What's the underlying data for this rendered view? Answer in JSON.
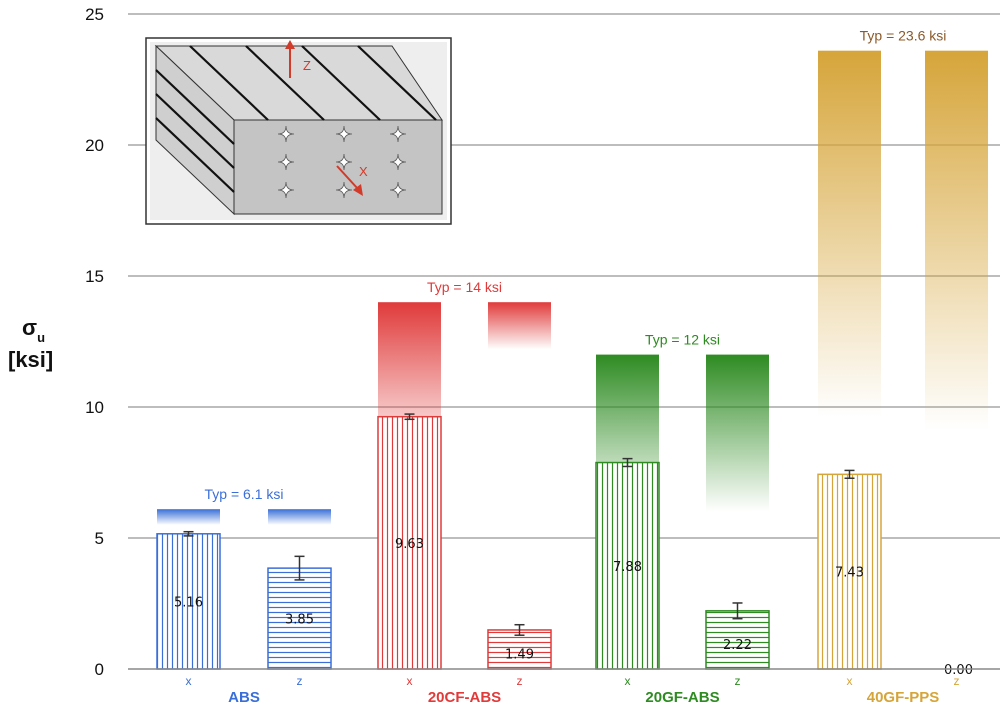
{
  "chart_data": {
    "type": "bar",
    "ylabel_symbol": "σ",
    "ylabel_sub": "u",
    "ylabel_unit": "[ksi]",
    "ylim": [
      0,
      25
    ],
    "yticks": [
      "0",
      "5",
      "10",
      "15",
      "20",
      "25"
    ],
    "grid": true,
    "groups": [
      {
        "name": "ABS",
        "color": "#3a6fd8",
        "typical": 6.1,
        "typical_label": "Typ = 6.1 ksi",
        "bars": [
          {
            "dir": "x",
            "value": 5.16,
            "label": "5.16",
            "err": 0.08,
            "hatch": "vertical"
          },
          {
            "dir": "z",
            "value": 3.85,
            "label": "3.85",
            "err": 0.45,
            "hatch": "horizontal"
          }
        ]
      },
      {
        "name": "20CF-ABS",
        "color": "#e03a3a",
        "typical": 14,
        "typical_label": "Typ = 14 ksi",
        "bars": [
          {
            "dir": "x",
            "value": 9.63,
            "label": "9.63",
            "err": 0.1,
            "hatch": "vertical"
          },
          {
            "dir": "z",
            "value": 1.49,
            "label": "1.49",
            "err": 0.2,
            "hatch": "horizontal"
          }
        ]
      },
      {
        "name": "20GF-ABS",
        "color": "#2e8b22",
        "typical": 12,
        "typical_label": "Typ = 12 ksi",
        "bars": [
          {
            "dir": "x",
            "value": 7.88,
            "label": "7.88",
            "err": 0.15,
            "hatch": "vertical"
          },
          {
            "dir": "z",
            "value": 2.22,
            "label": "2.22",
            "err": 0.3,
            "hatch": "horizontal"
          }
        ]
      },
      {
        "name": "40GF-PPS",
        "color": "#d6a53a",
        "typical": 23.6,
        "typical_label": "Typ = 23.6 ksi",
        "bars": [
          {
            "dir": "x",
            "value": 7.43,
            "label": "7.43",
            "err": 0.15,
            "hatch": "vertical"
          },
          {
            "dir": "z",
            "value": 0.0,
            "label": "0.00",
            "err": 0,
            "hatch": "horizontal"
          }
        ]
      }
    ],
    "inset": {
      "label_z": "Z",
      "label_x": "X"
    }
  }
}
